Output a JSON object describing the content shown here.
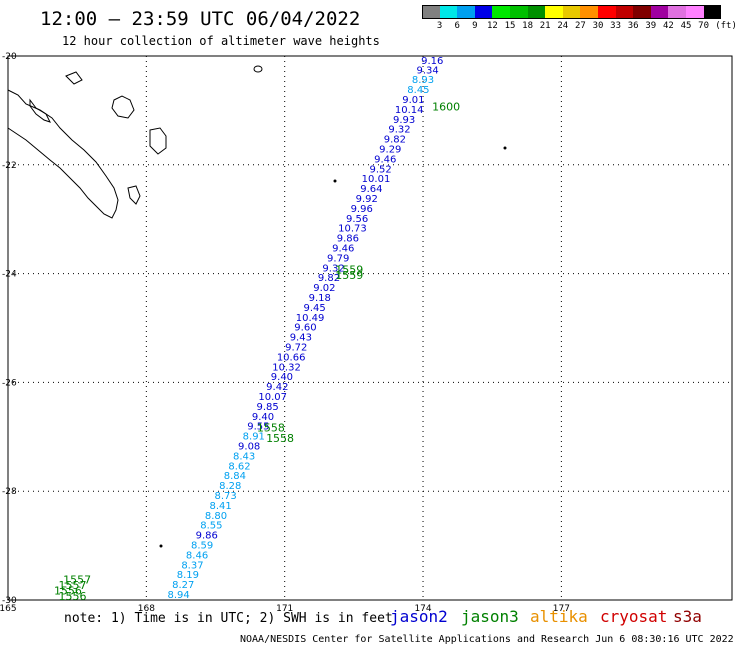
{
  "header": {
    "title": "12:00 – 23:59 UTC 06/04/2022",
    "subtitle": "12 hour collection of altimeter wave heights"
  },
  "color_scale": {
    "labels": [
      "3",
      "6",
      "9",
      "12",
      "15",
      "18",
      "21",
      "24",
      "27",
      "30",
      "33",
      "36",
      "39",
      "42",
      "45",
      "70"
    ],
    "unit": "(ft)",
    "colors": [
      "#808080",
      "#00e8e8",
      "#00a0f0",
      "#0000e8",
      "#00e800",
      "#00c000",
      "#009000",
      "#ffff00",
      "#e8c800",
      "#ff9000",
      "#ff0000",
      "#c00000",
      "#800000",
      "#a000a0",
      "#e070e0",
      "#ff80ff",
      "#000000"
    ]
  },
  "footer": {
    "note": "note: 1) Time is in UTC; 2) SWH is in feet",
    "satellites": [
      {
        "name": "jason2",
        "color": "#0000d0"
      },
      {
        "name": "jason3",
        "color": "#008000"
      },
      {
        "name": "altika",
        "color": "#e89000"
      },
      {
        "name": "cryosat",
        "color": "#d00000"
      },
      {
        "name": "s3a",
        "color": "#900000"
      }
    ],
    "credit": "NOAA/NESDIS Center for Satellite Applications and Research    Jun  6 08:30:16 UTC 2022"
  },
  "chart_data": {
    "type": "scatter",
    "title": "12:00 – 23:59 UTC 06/04/2022",
    "xlabel": "",
    "ylabel": "",
    "xlim": [
      165,
      180.7
    ],
    "ylim": [
      -30,
      -20
    ],
    "x_ticks": [
      "165",
      "168",
      "171",
      "174",
      "177"
    ],
    "y_ticks": [
      "-20",
      "-22",
      "-24",
      "-26",
      "-28",
      "-30"
    ],
    "grid": true,
    "time_labels": [
      {
        "text": "1600",
        "lon": 174.5,
        "lat": -21.0
      },
      {
        "text": "1559",
        "lon": 172.4,
        "lat": -24.0
      },
      {
        "text": "1559",
        "lon": 172.4,
        "lat": -24.1
      },
      {
        "text": "1558",
        "lon": 170.7,
        "lat": -26.9
      },
      {
        "text": "1558",
        "lon": 170.9,
        "lat": -27.1
      },
      {
        "text": "1557",
        "lon": 166.5,
        "lat": -29.7
      },
      {
        "text": "1557",
        "lon": 166.4,
        "lat": -29.8
      },
      {
        "text": "1556",
        "lon": 166.3,
        "lat": -29.9
      },
      {
        "text": "1556",
        "lon": 166.4,
        "lat": -30.0
      }
    ],
    "series": [
      {
        "name": "jason3",
        "color_dark": "#0000d0",
        "color_light": "#00a0f0",
        "points": [
          {
            "lon": 174.2,
            "lat": -20.15,
            "swh": "9.16"
          },
          {
            "lon": 174.1,
            "lat": -20.32,
            "swh": "9.34"
          },
          {
            "lon": 174.0,
            "lat": -20.5,
            "swh": "8.93"
          },
          {
            "lon": 173.9,
            "lat": -20.68,
            "swh": "8.45"
          },
          {
            "lon": 173.79,
            "lat": -20.86,
            "swh": "9.01"
          },
          {
            "lon": 173.7,
            "lat": -21.05,
            "swh": "10.14"
          },
          {
            "lon": 173.59,
            "lat": -21.23,
            "swh": "9.93"
          },
          {
            "lon": 173.49,
            "lat": -21.41,
            "swh": "9.32"
          },
          {
            "lon": 173.39,
            "lat": -21.59,
            "swh": "9.82"
          },
          {
            "lon": 173.29,
            "lat": -21.77,
            "swh": "9.29"
          },
          {
            "lon": 173.18,
            "lat": -21.96,
            "swh": "9.46"
          },
          {
            "lon": 173.08,
            "lat": -22.14,
            "swh": "9.52"
          },
          {
            "lon": 172.98,
            "lat": -22.32,
            "swh": "10.01"
          },
          {
            "lon": 172.88,
            "lat": -22.5,
            "swh": "9.64"
          },
          {
            "lon": 172.78,
            "lat": -22.68,
            "swh": "9.92"
          },
          {
            "lon": 172.67,
            "lat": -22.87,
            "swh": "9.96"
          },
          {
            "lon": 172.57,
            "lat": -23.05,
            "swh": "9.56"
          },
          {
            "lon": 172.47,
            "lat": -23.23,
            "swh": "10.73"
          },
          {
            "lon": 172.37,
            "lat": -23.41,
            "swh": "9.86"
          },
          {
            "lon": 172.27,
            "lat": -23.59,
            "swh": "9.46"
          },
          {
            "lon": 172.16,
            "lat": -23.78,
            "swh": "9.79"
          },
          {
            "lon": 172.06,
            "lat": -23.96,
            "swh": "9.32"
          },
          {
            "lon": 171.96,
            "lat": -24.14,
            "swh": "9.82"
          },
          {
            "lon": 171.86,
            "lat": -24.32,
            "swh": "9.02"
          },
          {
            "lon": 171.76,
            "lat": -24.5,
            "swh": "9.18"
          },
          {
            "lon": 171.65,
            "lat": -24.69,
            "swh": "9.45"
          },
          {
            "lon": 171.55,
            "lat": -24.87,
            "swh": "10.49"
          },
          {
            "lon": 171.45,
            "lat": -25.05,
            "swh": "9.60"
          },
          {
            "lon": 171.35,
            "lat": -25.23,
            "swh": "9.43"
          },
          {
            "lon": 171.25,
            "lat": -25.41,
            "swh": "9.72"
          },
          {
            "lon": 171.14,
            "lat": -25.6,
            "swh": "10.66"
          },
          {
            "lon": 171.04,
            "lat": -25.78,
            "swh": "10.32"
          },
          {
            "lon": 170.94,
            "lat": -25.96,
            "swh": "9.40"
          },
          {
            "lon": 170.84,
            "lat": -26.14,
            "swh": "9.42"
          },
          {
            "lon": 170.74,
            "lat": -26.32,
            "swh": "10.07"
          },
          {
            "lon": 170.63,
            "lat": -26.51,
            "swh": "9.85"
          },
          {
            "lon": 170.53,
            "lat": -26.69,
            "swh": "9.40"
          },
          {
            "lon": 170.43,
            "lat": -26.87,
            "swh": "9.55"
          },
          {
            "lon": 170.33,
            "lat": -27.05,
            "swh": "8.91"
          },
          {
            "lon": 170.23,
            "lat": -27.23,
            "swh": "9.08"
          },
          {
            "lon": 170.12,
            "lat": -27.42,
            "swh": "8.43"
          },
          {
            "lon": 170.02,
            "lat": -27.6,
            "swh": "8.62"
          },
          {
            "lon": 169.92,
            "lat": -27.78,
            "swh": "8.84"
          },
          {
            "lon": 169.82,
            "lat": -27.96,
            "swh": "8.28"
          },
          {
            "lon": 169.72,
            "lat": -28.14,
            "swh": "8.73"
          },
          {
            "lon": 169.61,
            "lat": -28.33,
            "swh": "8.41"
          },
          {
            "lon": 169.51,
            "lat": -28.51,
            "swh": "8.80"
          },
          {
            "lon": 169.41,
            "lat": -28.69,
            "swh": "8.55"
          },
          {
            "lon": 169.31,
            "lat": -28.87,
            "swh": "9.86"
          },
          {
            "lon": 169.21,
            "lat": -29.05,
            "swh": "8.59"
          },
          {
            "lon": 169.1,
            "lat": -29.24,
            "swh": "8.46"
          },
          {
            "lon": 169.0,
            "lat": -29.42,
            "swh": "8.37"
          },
          {
            "lon": 168.9,
            "lat": -29.6,
            "swh": "8.19"
          },
          {
            "lon": 168.8,
            "lat": -29.78,
            "swh": "8.27"
          },
          {
            "lon": 168.7,
            "lat": -29.96,
            "swh": "8.94"
          }
        ]
      }
    ]
  }
}
